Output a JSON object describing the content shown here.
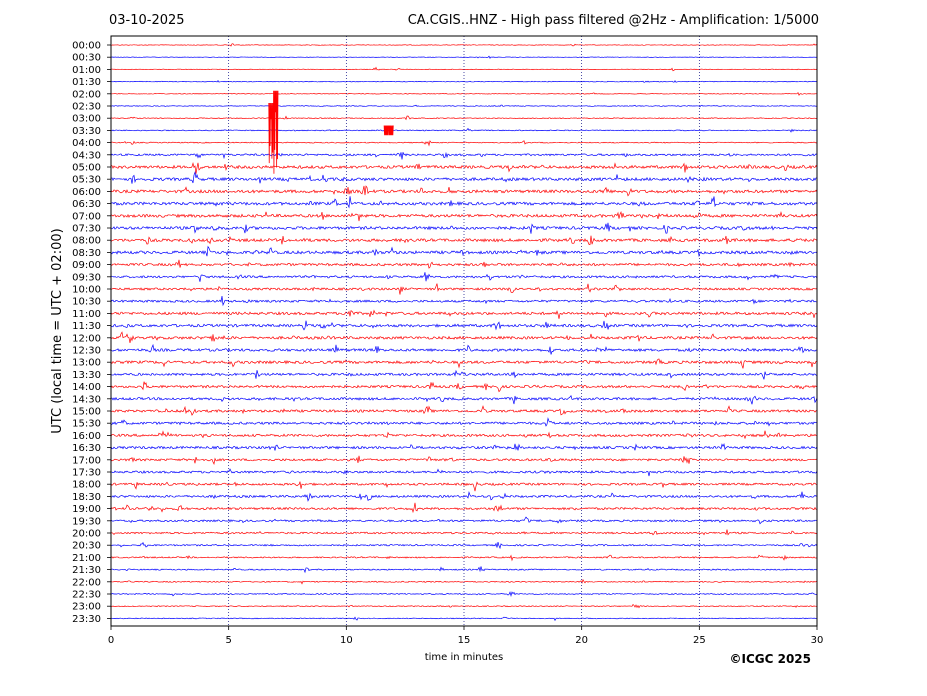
{
  "header": {
    "date": "03-10-2025",
    "title": "CA.CGIS..HNZ - High pass filtered @2Hz - Amplification: 1/5000"
  },
  "footer": {
    "copyright": "©ICGC 2025"
  },
  "colors": {
    "trace_odd": "#ff0000",
    "trace_even": "#0000ff",
    "axis": "#000000",
    "grid": "#000080"
  },
  "chart_data": {
    "type": "line",
    "title": "CA.CGIS..HNZ - High pass filtered @2Hz - Amplification: 1/5000",
    "xlabel": "time in minutes",
    "ylabel": "UTC (local time = UTC + 02:00)",
    "xlim": [
      0,
      30
    ],
    "x_ticks": [
      0,
      5,
      10,
      15,
      20,
      25,
      30
    ],
    "vertical_gridlines_at": [
      5,
      10,
      15,
      20,
      25
    ],
    "grid": "vertical-dotted",
    "row_labels": [
      "00:00",
      "00:30",
      "01:00",
      "01:30",
      "02:00",
      "02:30",
      "03:00",
      "03:30",
      "04:00",
      "04:30",
      "05:00",
      "05:30",
      "06:00",
      "06:30",
      "07:00",
      "07:30",
      "08:00",
      "08:30",
      "09:00",
      "09:30",
      "10:00",
      "10:30",
      "11:00",
      "11:30",
      "12:00",
      "12:30",
      "13:00",
      "13:30",
      "14:00",
      "14:30",
      "15:00",
      "15:30",
      "16:00",
      "16:30",
      "17:00",
      "17:30",
      "18:00",
      "18:30",
      "19:00",
      "19:30",
      "20:00",
      "20:30",
      "21:00",
      "21:30",
      "22:00",
      "22:30",
      "23:00",
      "23:30"
    ],
    "row_colors_cycle": [
      "#ff0000",
      "#0000ff"
    ],
    "noise_level_by_row": [
      0.5,
      0.4,
      0.5,
      0.6,
      0.5,
      0.6,
      0.7,
      0.8,
      0.8,
      1.6,
      2.4,
      2.4,
      2.4,
      2.4,
      2.4,
      2.4,
      2.4,
      2.4,
      2.0,
      1.8,
      1.8,
      1.8,
      2.2,
      2.2,
      2.2,
      2.2,
      2.2,
      2.0,
      2.0,
      2.0,
      2.0,
      2.0,
      2.0,
      2.0,
      1.8,
      1.8,
      1.8,
      1.8,
      1.8,
      1.6,
      1.4,
      1.2,
      1.1,
      1.0,
      0.9,
      0.9,
      0.8,
      0.7
    ],
    "events": [
      {
        "row": "02:30",
        "minute": 6.8,
        "amplitude_rows": 5.0,
        "direction": "down"
      },
      {
        "row": "02:00",
        "minute": 7.0,
        "amplitude_rows": 7.0,
        "direction": "down"
      },
      {
        "row": "03:30",
        "minute": 11.7,
        "amplitude_rows": 0.8,
        "direction": "both"
      },
      {
        "row": "03:30",
        "minute": 11.9,
        "amplitude_rows": 0.8,
        "direction": "both"
      }
    ]
  }
}
